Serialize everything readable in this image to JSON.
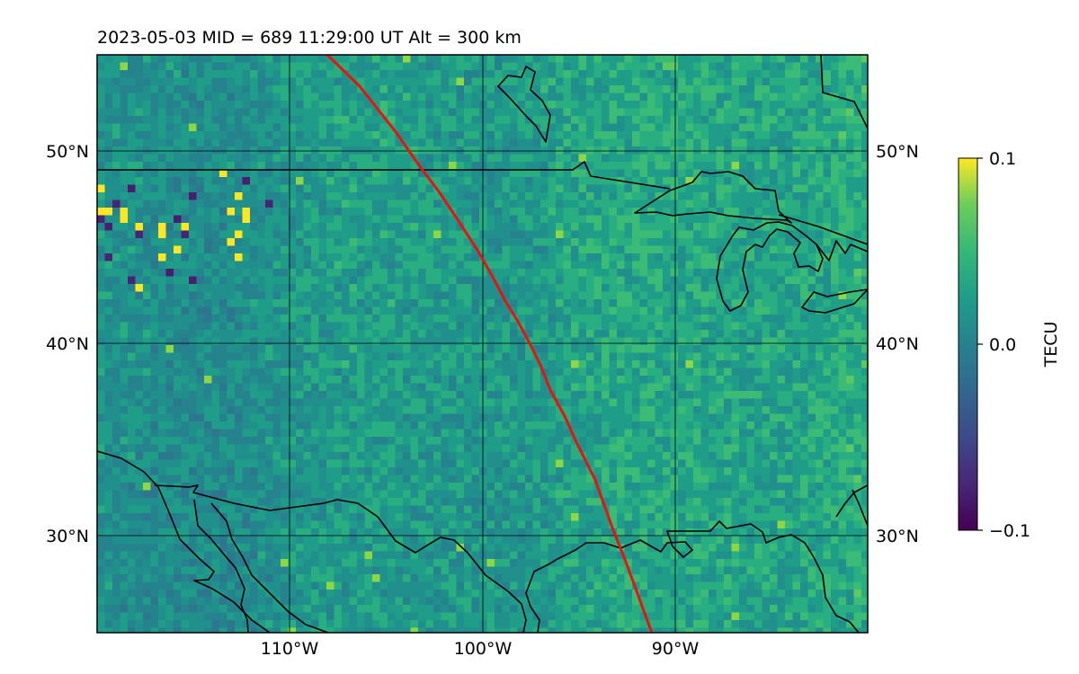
{
  "title": "2023-05-03  MID = 689    11:29:00  UT  Alt = 300 km",
  "map": {
    "lat_labels": [
      "50°N",
      "40°N",
      "30°N"
    ],
    "lon_labels": [
      "110°W",
      "100°W",
      "90°W"
    ],
    "lat_values": [
      50,
      40,
      30
    ],
    "lon_values": [
      -110,
      -100,
      -90
    ],
    "lon_range": [
      -120,
      -80
    ],
    "lat_range": [
      25,
      55
    ],
    "track_color": "#e8130d",
    "coastline_color": "#000000"
  },
  "colorbar": {
    "label": "TECU",
    "ticks": [
      "0.1",
      "0.0",
      "−0.1"
    ],
    "tick_values": [
      0.1,
      0.0,
      -0.1
    ],
    "colormap": "viridis"
  }
}
